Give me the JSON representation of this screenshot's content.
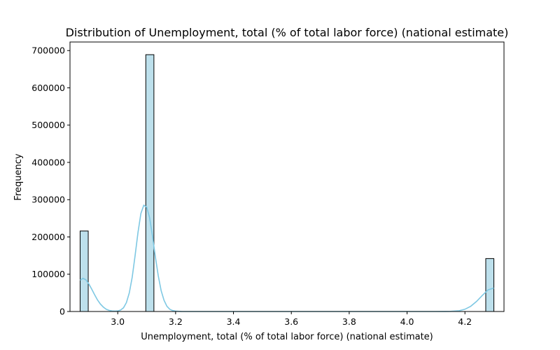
{
  "chart_data": {
    "type": "bar",
    "subtype": "histogram-with-kde",
    "title": "Distribution of Unemployment, total (% of total labor force) (national estimate)",
    "xlabel": "Unemployment, total (% of total labor force) (national estimate)",
    "ylabel": "Frequency",
    "xlim": [
      2.835,
      4.335
    ],
    "ylim": [
      0,
      723000
    ],
    "xticks": [
      3.0,
      3.2,
      3.4,
      3.6,
      3.8,
      4.0,
      4.2
    ],
    "xtick_labels": [
      "3.0",
      "3.2",
      "3.4",
      "3.6",
      "3.8",
      "4.0",
      "4.2"
    ],
    "yticks": [
      0,
      100000,
      200000,
      300000,
      400000,
      500000,
      600000,
      700000
    ],
    "ytick_labels": [
      "0",
      "100000",
      "200000",
      "300000",
      "400000",
      "500000",
      "600000",
      "700000"
    ],
    "bins": [
      {
        "x0": 2.87,
        "x1": 2.898,
        "count": 216000
      },
      {
        "x0": 3.097,
        "x1": 3.125,
        "count": 689000
      },
      {
        "x0": 4.272,
        "x1": 4.3,
        "count": 142000
      }
    ],
    "kde": {
      "x": [
        2.87,
        2.88,
        2.89,
        2.9,
        2.91,
        2.92,
        2.93,
        2.94,
        2.95,
        2.96,
        2.97,
        2.98,
        2.99,
        3.0,
        3.01,
        3.02,
        3.03,
        3.04,
        3.05,
        3.06,
        3.07,
        3.08,
        3.09,
        3.1,
        3.11,
        3.12,
        3.13,
        3.14,
        3.15,
        3.16,
        3.17,
        3.18,
        3.19,
        3.2,
        3.22,
        3.25,
        3.3,
        3.4,
        3.6,
        3.8,
        4.0,
        4.1,
        4.15,
        4.18,
        4.2,
        4.22,
        4.24,
        4.26,
        4.28,
        4.3
      ],
      "y": [
        84000,
        89000,
        85000,
        74000,
        60000,
        45000,
        31000,
        20000,
        12000,
        6000,
        3000,
        1500,
        1000,
        1500,
        4000,
        10000,
        24000,
        50000,
        92000,
        150000,
        212000,
        263000,
        285000,
        280000,
        252000,
        203000,
        147000,
        96000,
        56000,
        30000,
        14000,
        6000,
        2500,
        1000,
        200,
        0,
        0,
        0,
        0,
        0,
        0,
        0,
        300,
        2000,
        6000,
        14000,
        27000,
        43000,
        58000,
        63000
      ]
    },
    "bar_fill": "#bde0ec",
    "bar_edge": "#000000",
    "kde_color": "#7ec8e3",
    "grid": false,
    "legend": "none"
  }
}
